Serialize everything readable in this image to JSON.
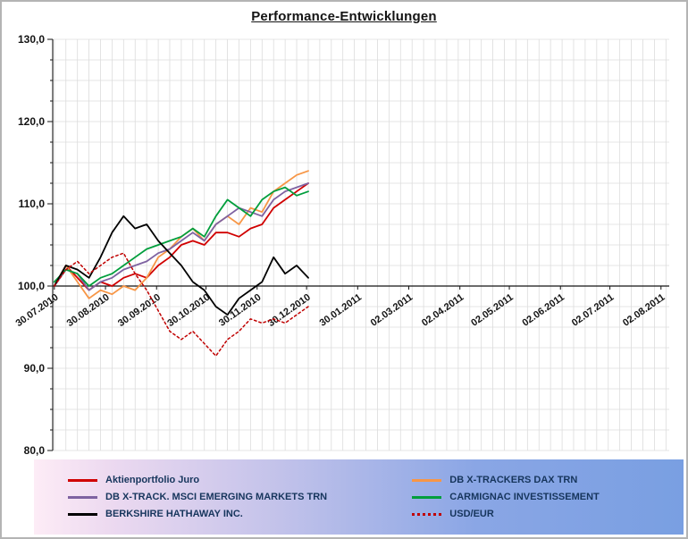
{
  "chart_data": {
    "type": "line",
    "title": "Performance-Entwicklungen",
    "xlabel": "",
    "ylabel": "",
    "ylim": [
      80,
      130
    ],
    "y_minor_step": 2.5,
    "y_ticks": [
      {
        "label": "130,0",
        "value": 130
      },
      {
        "label": "120,0",
        "value": 120
      },
      {
        "label": "110,0",
        "value": 110
      },
      {
        "label": "100,0",
        "value": 100
      },
      {
        "label": "90,0",
        "value": 90
      },
      {
        "label": "80,0",
        "value": 80
      }
    ],
    "baseline_value": 100,
    "x_ticks": [
      {
        "label": "30.07.2010",
        "day": 0
      },
      {
        "label": "30.08.2010",
        "day": 31
      },
      {
        "label": "30.09.2010",
        "day": 62
      },
      {
        "label": "30.10.2010",
        "day": 92
      },
      {
        "label": "30.11.2010",
        "day": 123
      },
      {
        "label": "30.12.2010",
        "day": 153
      },
      {
        "label": "30.01.2011",
        "day": 184
      },
      {
        "label": "02.03.2011",
        "day": 215
      },
      {
        "label": "02.04.2011",
        "day": 246
      },
      {
        "label": "02.05.2011",
        "day": 276
      },
      {
        "label": "02.06.2011",
        "day": 307
      },
      {
        "label": "02.07.2011",
        "day": 337
      },
      {
        "label": "02.08.2011",
        "day": 368
      }
    ],
    "grid": {
      "vertical_step_days": 7,
      "color": "#dcdcdc"
    },
    "x_days": [
      0,
      7,
      14,
      21,
      28,
      35,
      42,
      49,
      56,
      63,
      70,
      77,
      84,
      91,
      98,
      105,
      112,
      119,
      126,
      133,
      140,
      147,
      154
    ],
    "series": [
      {
        "name": "Aktienportfolio Juro",
        "color": "#d00000",
        "style": "solid",
        "values": [
          100,
          102.5,
          101,
          99.5,
          100.5,
          100,
          101,
          101.5,
          101,
          102.5,
          103.5,
          105,
          105.5,
          105,
          106.5,
          106.5,
          106,
          107,
          107.5,
          109.5,
          110.5,
          111.5,
          112.5
        ]
      },
      {
        "name": "DB X-TRACKERS  DAX TRN",
        "color": "#f79646",
        "style": "solid",
        "values": [
          100,
          102.5,
          100.5,
          98.5,
          99.5,
          99,
          100,
          99.5,
          101,
          103.5,
          104.5,
          106,
          107,
          105.5,
          107.5,
          108.5,
          107.5,
          109.5,
          109,
          111.5,
          112.5,
          113.5,
          114
        ]
      },
      {
        "name": "DB X-TRACK.  MSCI EMERGING MARKETS  TRN",
        "color": "#7e62a1",
        "style": "solid",
        "values": [
          100,
          102,
          101.5,
          99.5,
          100.5,
          101,
          102,
          102.5,
          103,
          104,
          104.5,
          105.5,
          106.5,
          105.5,
          107.5,
          108.5,
          109.5,
          109,
          108.5,
          110.5,
          111.5,
          112,
          112.5
        ]
      },
      {
        "name": "CARMIGNAC INVESTISSEMENT",
        "color": "#009e3c",
        "style": "solid",
        "values": [
          100.5,
          102,
          101.5,
          100,
          101,
          101.5,
          102.5,
          103.5,
          104.5,
          105,
          105.5,
          106,
          107,
          106,
          108.5,
          110.5,
          109.5,
          108.5,
          110.5,
          111.5,
          112,
          111,
          111.5
        ]
      },
      {
        "name": "BERKSHIRE HATHAWAY  INC.",
        "color": "#000000",
        "style": "solid",
        "values": [
          100,
          102.5,
          102,
          101,
          103.5,
          106.5,
          108.5,
          107,
          107.5,
          105.5,
          104,
          102.5,
          100.5,
          99.5,
          97.5,
          96.5,
          98.5,
          99.5,
          100.5,
          103.5,
          101.5,
          102.5,
          101
        ]
      },
      {
        "name": "USD/EUR",
        "color": "#c00000",
        "style": "dotted",
        "values": [
          100,
          102,
          103,
          101.5,
          102.5,
          103.5,
          104,
          101.5,
          99.5,
          97,
          94.5,
          93.5,
          94.5,
          93,
          91.5,
          93.5,
          94.5,
          96,
          95.5,
          96,
          95.5,
          96.5,
          97.5
        ]
      }
    ],
    "legend": {
      "position": "bottom",
      "columns": 2,
      "text_color": "#16355c",
      "gradient": [
        "#fdecf6",
        "#c2c2ea",
        "#799fe2"
      ]
    }
  }
}
